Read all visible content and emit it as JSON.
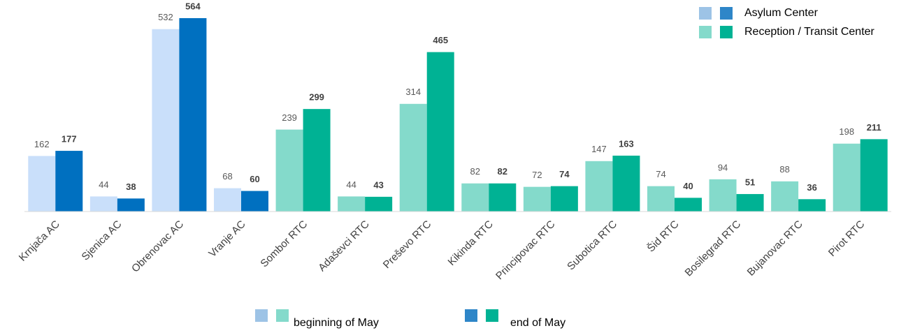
{
  "chart_data": {
    "type": "bar",
    "categories": [
      "Krnjača AC",
      "Sjenica AC",
      "Obrenovac AC",
      "Vranje AC",
      "Sombor RTC",
      "Adaševci RTC",
      "Preševo RTC",
      "Kikinda RTC",
      "Principovac RTC",
      "Subotica RTC",
      "Šid RTC",
      "Bosilegrad RTC",
      "Bujanovac RTC",
      "Pirot RTC"
    ],
    "series": [
      {
        "name": "beginning of May",
        "values": [
          162,
          44,
          532,
          68,
          239,
          44,
          314,
          82,
          72,
          147,
          74,
          94,
          88,
          198
        ],
        "colors": [
          "#c9dffa",
          "#c9dffa",
          "#c9dffa",
          "#c9dffa",
          "#84dacb",
          "#84dacb",
          "#84dacb",
          "#84dacb",
          "#84dacb",
          "#84dacb",
          "#84dacb",
          "#84dacb",
          "#84dacb",
          "#84dacb"
        ]
      },
      {
        "name": "end of May",
        "values": [
          177,
          38,
          564,
          60,
          299,
          43,
          465,
          82,
          74,
          163,
          40,
          51,
          36,
          211
        ],
        "colors": [
          "#0070c0",
          "#0070c0",
          "#0070c0",
          "#0070c0",
          "#00b294",
          "#00b294",
          "#00b294",
          "#00b294",
          "#00b294",
          "#00b294",
          "#00b294",
          "#00b294",
          "#00b294",
          "#00b294"
        ]
      }
    ],
    "center_types": [
      {
        "name": "Asylum Center",
        "colors": [
          "#9dc3e6",
          "#2e86c8"
        ]
      },
      {
        "name": "Reception / Transit Center",
        "colors": [
          "#84dacb",
          "#00b294"
        ]
      }
    ],
    "series_legend_colors": [
      [
        "#9dc3e6",
        "#84dacb"
      ],
      [
        "#2e86c8",
        "#00b294"
      ]
    ],
    "ylim": [
      0,
      564
    ]
  }
}
